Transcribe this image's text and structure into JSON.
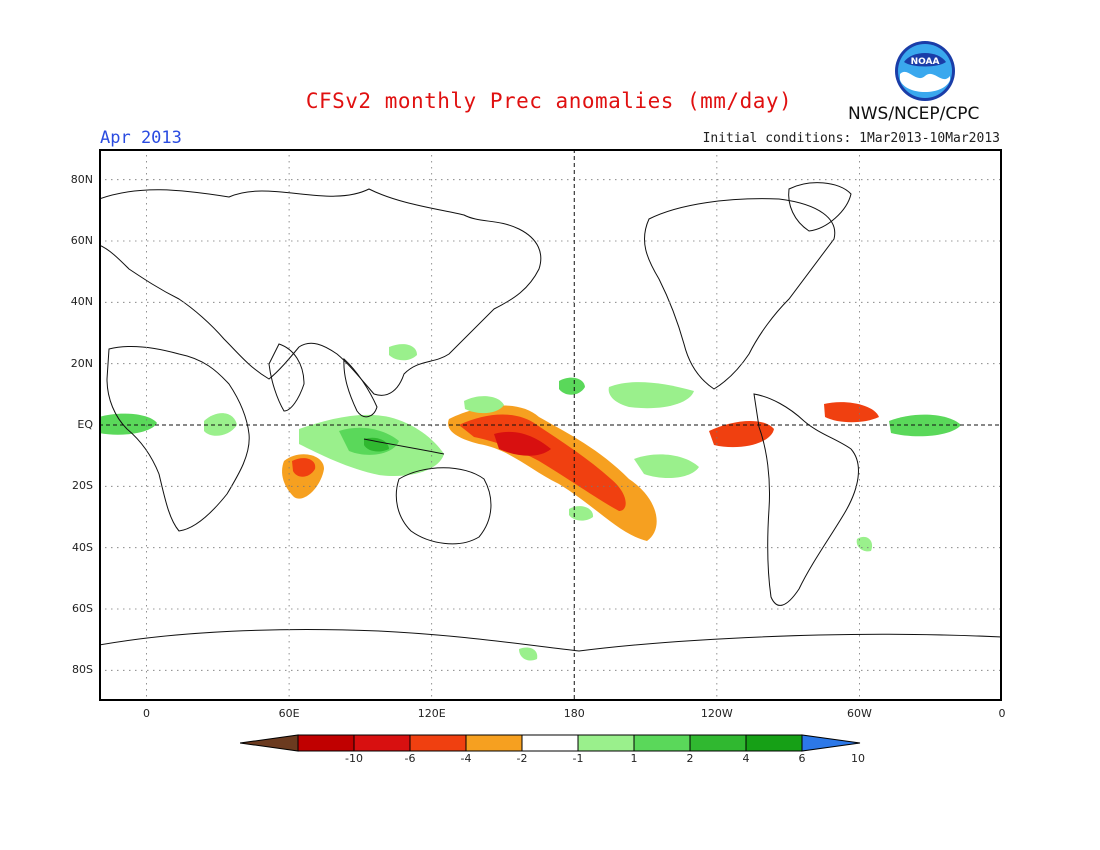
{
  "title": "CFSv2 monthly Prec anomalies (mm/day)",
  "month_label": "Apr 2013",
  "initial_conditions": "Initial conditions: 1Mar2013-10Mar2013",
  "agency": "NWS/NCEP/CPC",
  "logo": {
    "text": "NOAA",
    "icon": "noaa-logo-icon"
  },
  "map": {
    "projection": "equirectangular",
    "lon_range": [
      -20,
      360
    ],
    "lat_range": [
      -90,
      90
    ],
    "grid": "dotted",
    "reference_lines": [
      "equator",
      "180"
    ],
    "lat_labels": [
      "80N",
      "60N",
      "40N",
      "20N",
      "EQ",
      "20S",
      "40S",
      "60S",
      "80S"
    ],
    "lon_labels": [
      "0",
      "60E",
      "120E",
      "180",
      "120W",
      "60W",
      "0"
    ],
    "anomaly_regions_approx": [
      {
        "name": "central-south-pacific",
        "value": -4
      },
      {
        "name": "tropical-indian-ocean",
        "value": 2
      },
      {
        "name": "maritime-continent",
        "value": 4
      },
      {
        "name": "equatorial-atlantic",
        "value": 2
      },
      {
        "name": "southern-indian-ocean",
        "value": -2
      },
      {
        "name": "east-pacific-equatorial",
        "value": -4
      }
    ]
  },
  "colorbar": {
    "ticks": [
      "-10",
      "-6",
      "-4",
      "-2",
      "-1",
      "1",
      "2",
      "4",
      "6",
      "10"
    ],
    "colors": [
      "#6b3a1f",
      "#c00000",
      "#d81010",
      "#f04010",
      "#f6a020",
      "#ffffff",
      "#9af08c",
      "#5ad85a",
      "#30b830",
      "#16a016",
      "#2c78e8"
    ]
  }
}
